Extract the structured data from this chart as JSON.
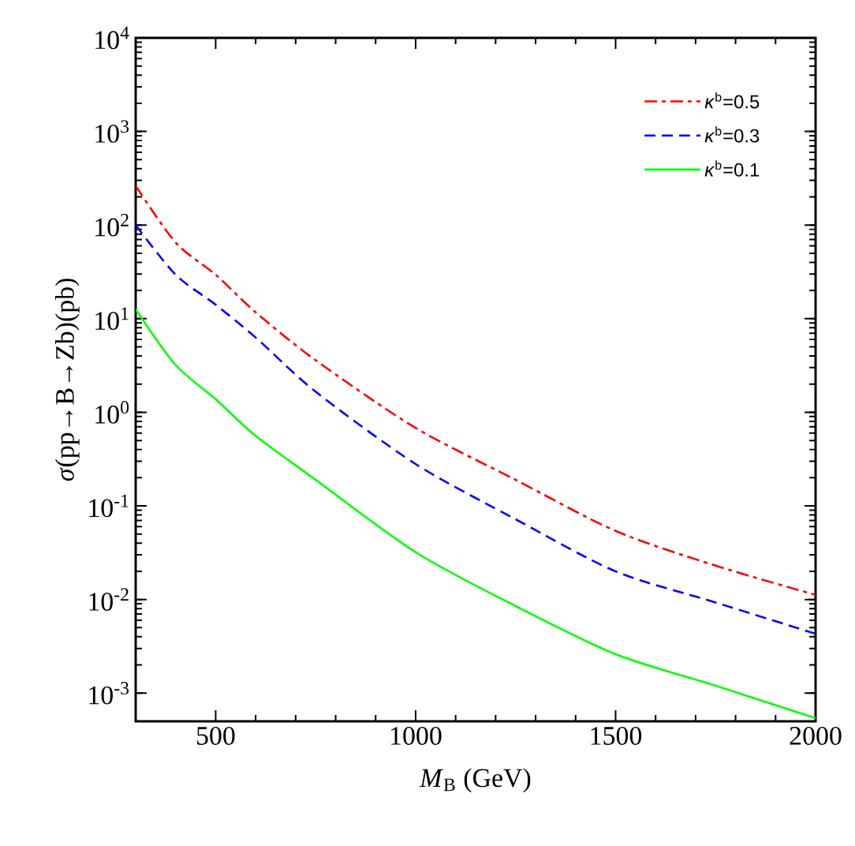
{
  "chart_data": {
    "type": "line",
    "xlabel": "*M*$_{B}$ (GeV)",
    "ylabel": "*σ*(pp→B→Zb)(pb)",
    "x": [
      300,
      400,
      500,
      600,
      750,
      1000,
      1250,
      1500,
      1750,
      2000
    ],
    "series": [
      {
        "name": "*κ*$^{b}$=0.5",
        "color": "#ff0000",
        "line_style": "dashdot",
        "values": [
          263,
          65,
          29.5,
          11.7,
          3.6,
          0.68,
          0.19,
          0.054,
          0.023,
          0.0112
        ]
      },
      {
        "name": "*κ*$^{b}$=0.3",
        "color": "#0000ff",
        "line_style": "dashed",
        "values": [
          100,
          29.5,
          14.1,
          6.3,
          1.66,
          0.28,
          0.072,
          0.02,
          0.0093,
          0.0043
        ]
      },
      {
        "name": "*κ*$^{b}$=0.1",
        "color": "#00ff00",
        "line_style": "solid",
        "values": [
          12.6,
          3.2,
          1.38,
          0.56,
          0.19,
          0.032,
          0.0085,
          0.0026,
          0.0012,
          0.00054
        ]
      }
    ],
    "log": "y",
    "xlim": [
      300,
      2000
    ],
    "ylim": [
      0.0005,
      10000
    ],
    "xticks": [
      500,
      1000,
      1500,
      2000
    ],
    "yticks": [
      {
        "value": 0.001,
        "label": "10$^{-3}$"
      },
      {
        "value": 0.01,
        "label": "10$^{-2}$"
      },
      {
        "value": 0.1,
        "label": "10$^{-1}$"
      },
      {
        "value": 1,
        "label": "10$^{0}$"
      },
      {
        "value": 10,
        "label": "10$^{1}$"
      },
      {
        "value": 100,
        "label": "10$^{2}$"
      },
      {
        "value": 1000,
        "label": "10$^{3}$"
      },
      {
        "value": 10000,
        "label": "10$^{4}$"
      }
    ],
    "grid": false,
    "legend": "top right",
    "marker": "none"
  }
}
